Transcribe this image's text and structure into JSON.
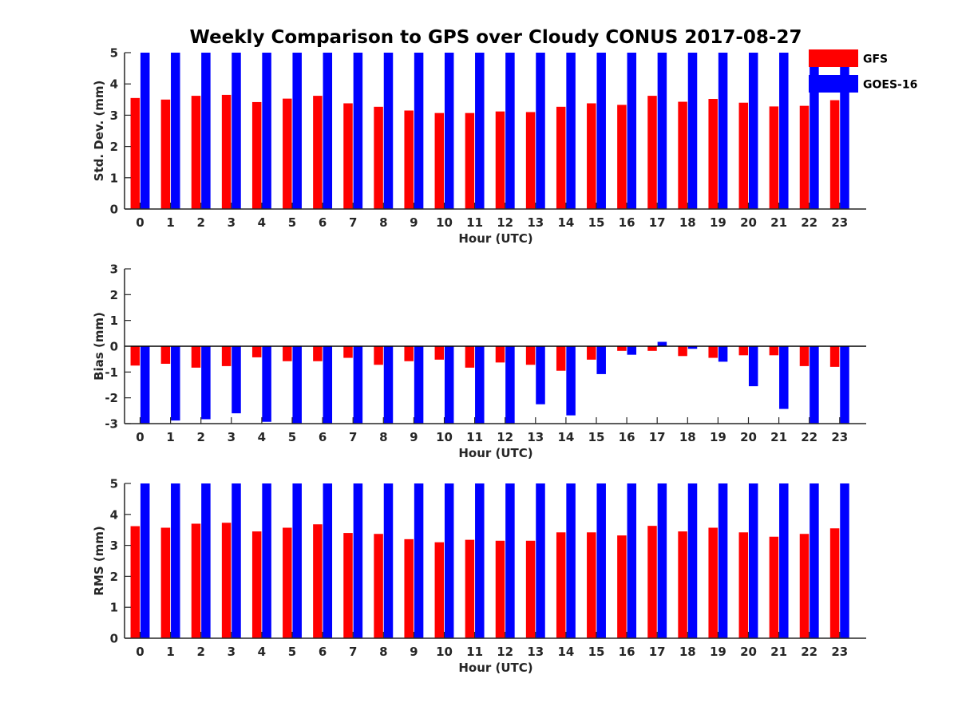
{
  "title": "Weekly Comparison to GPS over Cloudy CONUS 2017-08-27",
  "colors": {
    "GFS": "#ff0000",
    "GOES-16": "#0000ff"
  },
  "chart_data": [
    {
      "type": "bar",
      "categories": [
        "0",
        "1",
        "2",
        "3",
        "4",
        "5",
        "6",
        "7",
        "8",
        "9",
        "10",
        "11",
        "12",
        "13",
        "14",
        "15",
        "16",
        "17",
        "18",
        "19",
        "20",
        "21",
        "22",
        "23"
      ],
      "xlabel": "Hour (UTC)",
      "ylabel": "Std. Dev. (mm)",
      "ylim": [
        0,
        5
      ],
      "yticks": [
        "0",
        "1",
        "2",
        "3",
        "4",
        "5"
      ],
      "series": [
        {
          "name": "GFS",
          "values": [
            3.55,
            3.5,
            3.62,
            3.65,
            3.42,
            3.53,
            3.62,
            3.38,
            3.27,
            3.15,
            3.07,
            3.07,
            3.12,
            3.1,
            3.27,
            3.38,
            3.33,
            3.62,
            3.43,
            3.52,
            3.4,
            3.28,
            3.3,
            3.48
          ]
        },
        {
          "name": "GOES-16",
          "values": [
            5,
            5,
            5,
            5,
            5,
            5,
            5,
            5,
            5,
            5,
            5,
            5,
            5,
            5,
            5,
            5,
            5,
            5,
            5,
            5,
            5,
            5,
            5,
            5
          ]
        }
      ],
      "legend": "top-right"
    },
    {
      "type": "bar",
      "categories": [
        "0",
        "1",
        "2",
        "3",
        "4",
        "5",
        "6",
        "7",
        "8",
        "9",
        "10",
        "11",
        "12",
        "13",
        "14",
        "15",
        "16",
        "17",
        "18",
        "19",
        "20",
        "21",
        "22",
        "23"
      ],
      "xlabel": "Hour (UTC)",
      "ylabel": "Bias (mm)",
      "ylim": [
        -3,
        3
      ],
      "yticks": [
        "-3",
        "-2",
        "-1",
        "0",
        "1",
        "2",
        "3"
      ],
      "series": [
        {
          "name": "GFS",
          "values": [
            -0.75,
            -0.68,
            -0.83,
            -0.77,
            -0.43,
            -0.58,
            -0.58,
            -0.45,
            -0.72,
            -0.58,
            -0.52,
            -0.83,
            -0.63,
            -0.72,
            -0.95,
            -0.52,
            -0.18,
            -0.18,
            -0.38,
            -0.45,
            -0.35,
            -0.35,
            -0.77,
            -0.8
          ]
        },
        {
          "name": "GOES-16",
          "values": [
            -3,
            -2.88,
            -2.83,
            -2.6,
            -2.93,
            -3,
            -3,
            -3,
            -3,
            -3,
            -3,
            -3,
            -3,
            -2.25,
            -2.68,
            -1.08,
            -0.33,
            0.17,
            -0.1,
            -0.6,
            -1.55,
            -2.43,
            -3,
            -3
          ]
        }
      ]
    },
    {
      "type": "bar",
      "categories": [
        "0",
        "1",
        "2",
        "3",
        "4",
        "5",
        "6",
        "7",
        "8",
        "9",
        "10",
        "11",
        "12",
        "13",
        "14",
        "15",
        "16",
        "17",
        "18",
        "19",
        "20",
        "21",
        "22",
        "23"
      ],
      "xlabel": "Hour (UTC)",
      "ylabel": "RMS (mm)",
      "ylim": [
        0,
        5
      ],
      "yticks": [
        "0",
        "1",
        "2",
        "3",
        "4",
        "5"
      ],
      "series": [
        {
          "name": "GFS",
          "values": [
            3.62,
            3.57,
            3.7,
            3.73,
            3.45,
            3.57,
            3.68,
            3.4,
            3.37,
            3.2,
            3.1,
            3.18,
            3.15,
            3.15,
            3.42,
            3.42,
            3.32,
            3.63,
            3.45,
            3.57,
            3.42,
            3.28,
            3.37,
            3.55
          ]
        },
        {
          "name": "GOES-16",
          "values": [
            5,
            5,
            5,
            5,
            5,
            5,
            5,
            5,
            5,
            5,
            5,
            5,
            5,
            5,
            5,
            5,
            5,
            5,
            5,
            5,
            5,
            5,
            5,
            5
          ]
        }
      ]
    }
  ]
}
